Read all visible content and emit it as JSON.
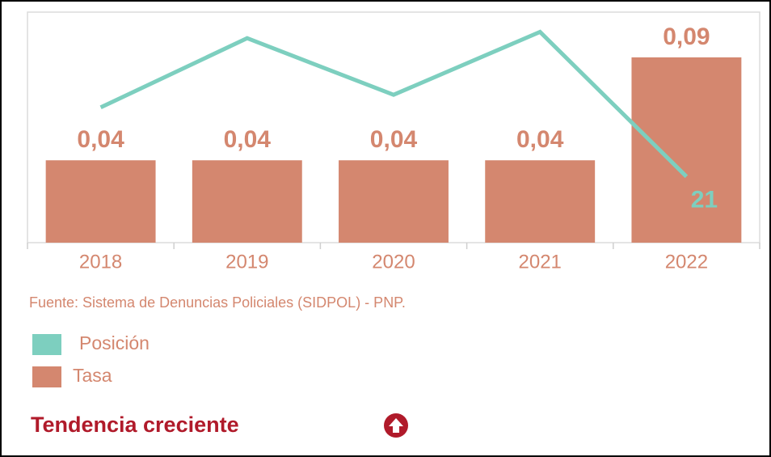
{
  "chart_data": {
    "type": "bar",
    "categories": [
      "2018",
      "2019",
      "2020",
      "2021",
      "2022"
    ],
    "series": [
      {
        "name": "Posición",
        "type": "line",
        "axis": "y2",
        "color": "#7dcfbf",
        "values": [
          43,
          65,
          47,
          67,
          21
        ]
      },
      {
        "name": "Tasa",
        "type": "bar",
        "color": "#d4876f",
        "values": [
          0.04,
          0.04,
          0.04,
          0.04,
          0.09
        ],
        "value_labels": [
          "0,04",
          "0,04",
          "0,04",
          "0,04",
          "0,09"
        ]
      }
    ],
    "ylim": [
      0,
      0.11
    ],
    "y2lim": [
      0,
      72
    ],
    "grid": false,
    "source": "Fuente: Sistema de Denuncias Policiales (SIDPOL) - PNP.",
    "annotation": "Tendencia creciente"
  }
}
